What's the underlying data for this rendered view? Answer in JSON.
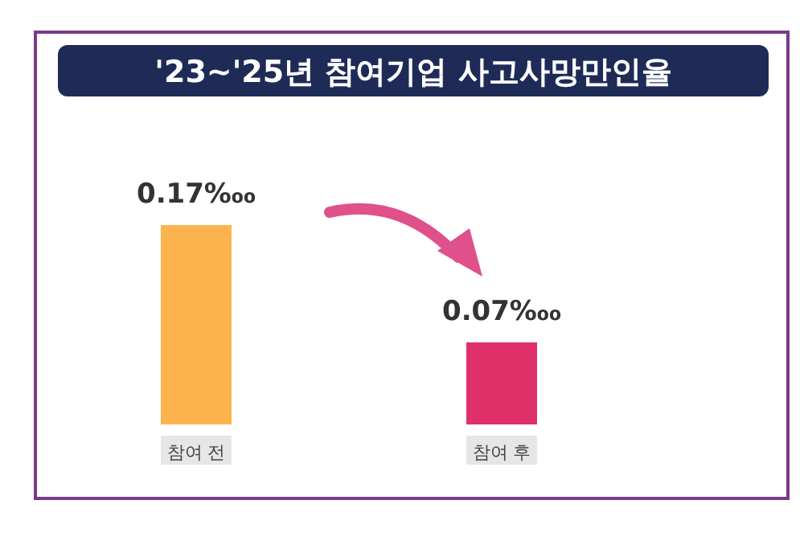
{
  "chart_data": {
    "type": "bar",
    "title": "'23~'25년 참여기업 사고사망만인율",
    "categories": [
      "참여 전",
      "참여 후"
    ],
    "values": [
      0.17,
      0.07
    ],
    "colors": [
      "#fdb44e",
      "#e0306a"
    ],
    "value_labels": [
      "0.17‱",
      "0.07‱"
    ]
  }
}
